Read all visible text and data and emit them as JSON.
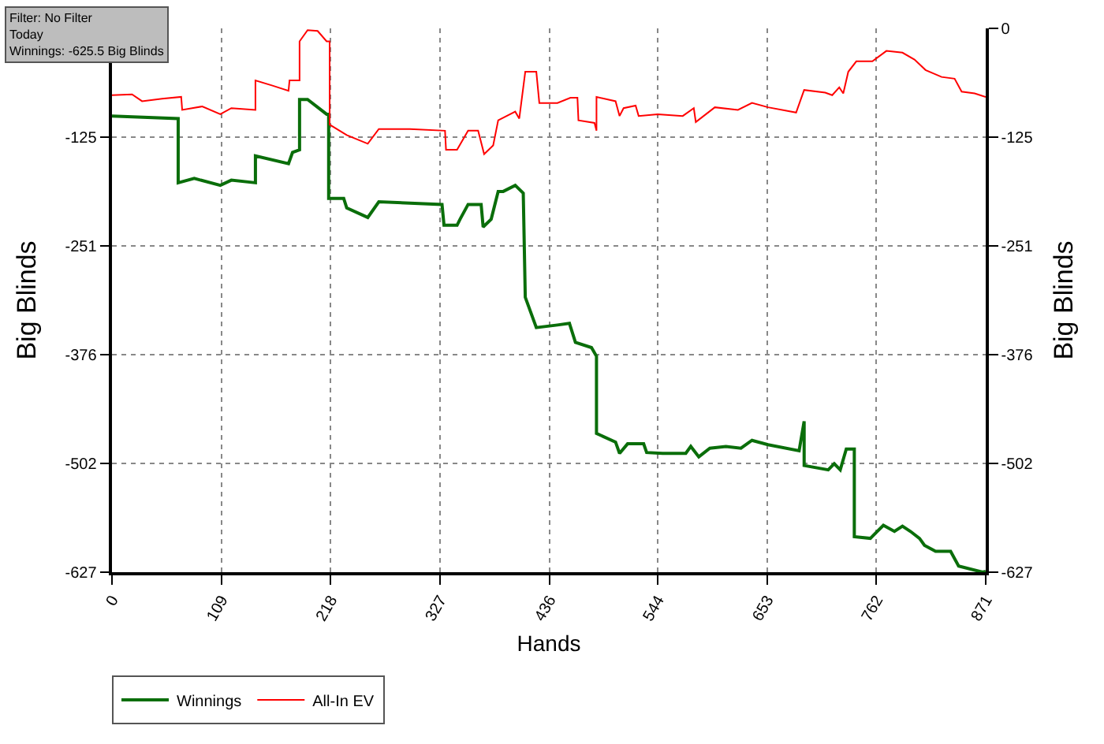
{
  "chart_data": {
    "type": "line",
    "xlabel": "Hands",
    "ylabel": "Big Blinds",
    "y2label": "Big Blinds",
    "annotations": [
      "Filter: No Filter\nToday\nWinnings: -625.5 Big Blinds"
    ],
    "xlim": [
      0,
      871
    ],
    "xticks": [
      0,
      109,
      218,
      327,
      436,
      544,
      653,
      762,
      871
    ],
    "ylim": [
      -627,
      0
    ],
    "yticks": [
      {
        "value": 0,
        "label": null
      },
      -125,
      -251,
      -376,
      -502,
      -627
    ],
    "y2lim": [
      -627,
      0
    ],
    "y2ticks": [
      0,
      -125,
      -251,
      -376,
      -502,
      -627
    ],
    "grid": true,
    "legend": "bottom left",
    "line_style": "solid",
    "marker": "none",
    "series": [
      {
        "name": "Winnings",
        "color": "#0a6e0a",
        "x": [
          0,
          66,
          66,
          82,
          108,
          119,
          143,
          143,
          176,
          180,
          187,
          187,
          195,
          214,
          216,
          216,
          231,
          234,
          255,
          266,
          329,
          331,
          344,
          347,
          355,
          368,
          370,
          378,
          385,
          390,
          402,
          410,
          412,
          423,
          444,
          456,
          462,
          478,
          483,
          483,
          502,
          506,
          514,
          530,
          533,
          549,
          572,
          577,
          585,
          596,
          612,
          627,
          638,
          654,
          685,
          690,
          690,
          714,
          720,
          726,
          732,
          740,
          740,
          756,
          762,
          769,
          780,
          788,
          796,
          805,
          810,
          821,
          836,
          844,
          868,
          871
        ],
        "values": [
          -101,
          -104,
          -178,
          -173,
          -181,
          -175,
          -178,
          -147,
          -156,
          -143,
          -140,
          -82,
          -82,
          -99,
          -99,
          -196,
          -196,
          -207,
          -218,
          -200,
          -203,
          -227,
          -227,
          -220,
          -203,
          -203,
          -229,
          -220,
          -188,
          -188,
          -181,
          -190,
          -310,
          -345,
          -342,
          -340,
          -362,
          -368,
          -378,
          -467,
          -477,
          -490,
          -479,
          -479,
          -489,
          -490,
          -490,
          -482,
          -494,
          -484,
          -482,
          -484,
          -475,
          -480,
          -487,
          -453,
          -504,
          -509,
          -502,
          -509,
          -485,
          -485,
          -586,
          -588,
          -581,
          -573,
          -580,
          -574,
          -580,
          -588,
          -596,
          -603,
          -603,
          -620,
          -627,
          -626
        ]
      },
      {
        "name": "All-In EV",
        "color": "#ff0000",
        "x": [
          0,
          20,
          30,
          50,
          69,
          70,
          90,
          108,
          119,
          143,
          143,
          160,
          176,
          177,
          187,
          187,
          195,
          205,
          214,
          217,
          217,
          234,
          255,
          266,
          297,
          332,
          333,
          344,
          355,
          365,
          371,
          380,
          385,
          402,
          406,
          412,
          423,
          426,
          444,
          457,
          464,
          465,
          481,
          483,
          483,
          502,
          506,
          510,
          522,
          525,
          544,
          569,
          580,
          582,
          601,
          624,
          638,
          654,
          682,
          690,
          711,
          718,
          725,
          729,
          734,
          742,
          758,
          772,
          788,
          800,
          811,
          827,
          840,
          847,
          860,
          871
        ],
        "values": [
          -77,
          -76,
          -84,
          -81,
          -79,
          -94,
          -90,
          -99,
          -92,
          -94,
          -60,
          -66,
          -72,
          -60,
          -60,
          -15,
          -2,
          -3,
          -15,
          -15,
          -111,
          -123,
          -133,
          -116,
          -116,
          -118,
          -140,
          -140,
          -118,
          -118,
          -145,
          -135,
          -106,
          -96,
          -104,
          -50,
          -50,
          -86,
          -86,
          -80,
          -80,
          -106,
          -109,
          -118,
          -79,
          -84,
          -101,
          -92,
          -89,
          -101,
          -99,
          -101,
          -92,
          -108,
          -91,
          -94,
          -86,
          -91,
          -97,
          -71,
          -74,
          -77,
          -68,
          -75,
          -50,
          -38,
          -38,
          -26,
          -28,
          -36,
          -48,
          -56,
          -58,
          -73,
          -75,
          -79
        ]
      }
    ]
  }
}
